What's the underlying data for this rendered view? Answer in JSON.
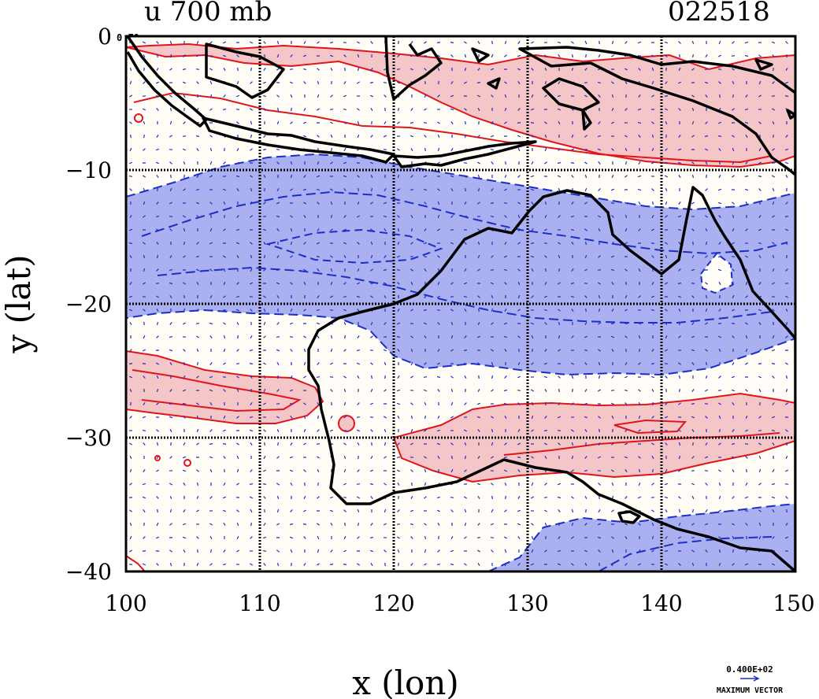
{
  "header": {
    "title": "u 700 mb",
    "date_code": "022518",
    "corner_label": "0 E0"
  },
  "axes": {
    "xlabel": "x (lon)",
    "ylabel": "y (lat)",
    "x_ticks": [
      "100",
      "110",
      "120",
      "130",
      "140",
      "150"
    ],
    "y_ticks": [
      "0",
      "−10",
      "−20",
      "−30",
      "−40"
    ]
  },
  "vector_legend": {
    "value": "0.400E+02",
    "label": "MAXIMUM VECTOR"
  },
  "colors": {
    "positive_fill": "#f5c6c8",
    "positive_line": "#e0141c",
    "negative_fill": "#aab0f0",
    "negative_line": "#1a2fc8",
    "coast": "#000000",
    "vector": "#1a2fc8"
  },
  "chart_data": {
    "type": "map",
    "variable": "u 700 mb",
    "x_range": [
      100,
      150
    ],
    "y_range": [
      -40,
      0
    ],
    "grid": true,
    "grid_lon": [
      110,
      120,
      130,
      140
    ],
    "grid_lat": [
      -10,
      -20,
      -30
    ]
  }
}
